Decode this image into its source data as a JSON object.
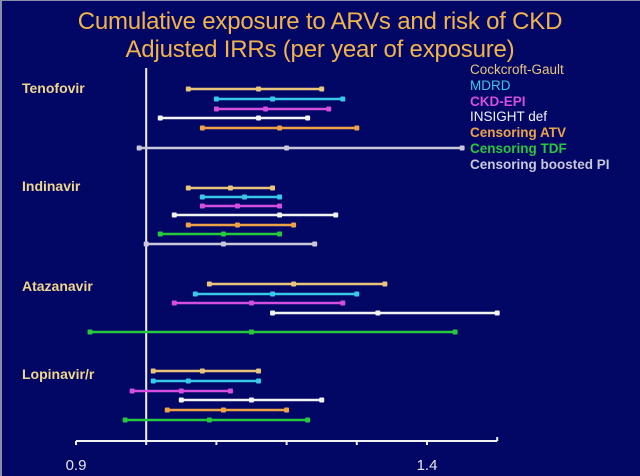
{
  "chart_data": {
    "type": "forest",
    "title": "Cumulative exposure to ARVs and risk of CKD",
    "subtitle": "Adjusted IRRs (per year of exposure)",
    "xlabel": "",
    "ylabel": "",
    "xlim": [
      0.9,
      1.5
    ],
    "reference_line": 1.0,
    "x_ticks": [
      0.9,
      1.0,
      1.1,
      1.2,
      1.3,
      1.4
    ],
    "x_tick_labels": [
      {
        "value": 0.9,
        "label": "0.9"
      },
      {
        "value": 1.4,
        "label": "1.4"
      }
    ],
    "legend_position": "top-right",
    "series": [
      {
        "key": "cg",
        "name": "Cockcroft-Gault",
        "color": "#e8c57a",
        "bold": false
      },
      {
        "key": "mdrd",
        "name": "MDRD",
        "color": "#38c8e8",
        "bold": false
      },
      {
        "key": "ckdepi",
        "name": "CKD-EPI",
        "color": "#d44ee0",
        "bold": true
      },
      {
        "key": "insight",
        "name": "INSIGHT def",
        "color": "#f2f2f2",
        "bold": false
      },
      {
        "key": "atv",
        "name": "Censoring ATV",
        "color": "#eda345",
        "bold": true
      },
      {
        "key": "tdf",
        "name": "Censoring TDF",
        "color": "#28c83c",
        "bold": true
      },
      {
        "key": "bpi",
        "name": "Censoring boosted PI",
        "color": "#c8c8d8",
        "bold": true
      }
    ],
    "groups": [
      {
        "label": "Tenofovir",
        "rows": [
          {
            "series": "cg",
            "lower": 1.06,
            "estimate": 1.16,
            "upper": 1.25
          },
          {
            "series": "mdrd",
            "lower": 1.1,
            "estimate": 1.18,
            "upper": 1.28
          },
          {
            "series": "ckdepi",
            "lower": 1.1,
            "estimate": 1.17,
            "upper": 1.26
          },
          {
            "series": "insight",
            "lower": 1.02,
            "estimate": 1.16,
            "upper": 1.23
          },
          {
            "series": "atv",
            "lower": 1.08,
            "estimate": 1.19,
            "upper": 1.3
          },
          {
            "series": "bpi",
            "lower": 0.99,
            "estimate": 1.2,
            "upper": 1.45
          }
        ]
      },
      {
        "label": "Indinavir",
        "rows": [
          {
            "series": "cg",
            "lower": 1.06,
            "estimate": 1.12,
            "upper": 1.18
          },
          {
            "series": "mdrd",
            "lower": 1.08,
            "estimate": 1.14,
            "upper": 1.19
          },
          {
            "series": "ckdepi",
            "lower": 1.08,
            "estimate": 1.13,
            "upper": 1.19
          },
          {
            "series": "insight",
            "lower": 1.04,
            "estimate": 1.19,
            "upper": 1.27
          },
          {
            "series": "atv",
            "lower": 1.06,
            "estimate": 1.13,
            "upper": 1.21
          },
          {
            "series": "tdf",
            "lower": 1.02,
            "estimate": 1.11,
            "upper": 1.19
          },
          {
            "series": "bpi",
            "lower": 1.0,
            "estimate": 1.11,
            "upper": 1.24
          }
        ]
      },
      {
        "label": "Atazanavir",
        "rows": [
          {
            "series": "cg",
            "lower": 1.09,
            "estimate": 1.21,
            "upper": 1.34
          },
          {
            "series": "mdrd",
            "lower": 1.07,
            "estimate": 1.18,
            "upper": 1.3
          },
          {
            "series": "ckdepi",
            "lower": 1.04,
            "estimate": 1.15,
            "upper": 1.28
          },
          {
            "series": "insight",
            "lower": 1.18,
            "estimate": 1.33,
            "upper": 1.5
          },
          {
            "series": "tdf",
            "lower": 0.92,
            "estimate": 1.15,
            "upper": 1.44
          }
        ]
      },
      {
        "label": "Lopinavir/r",
        "rows": [
          {
            "series": "cg",
            "lower": 1.01,
            "estimate": 1.08,
            "upper": 1.16
          },
          {
            "series": "mdrd",
            "lower": 1.01,
            "estimate": 1.06,
            "upper": 1.16
          },
          {
            "series": "ckdepi",
            "lower": 0.98,
            "estimate": 1.05,
            "upper": 1.12
          },
          {
            "series": "insight",
            "lower": 1.05,
            "estimate": 1.15,
            "upper": 1.25
          },
          {
            "series": "atv",
            "lower": 1.03,
            "estimate": 1.11,
            "upper": 1.2
          },
          {
            "series": "tdf",
            "lower": 0.97,
            "estimate": 1.09,
            "upper": 1.23
          }
        ]
      }
    ]
  }
}
